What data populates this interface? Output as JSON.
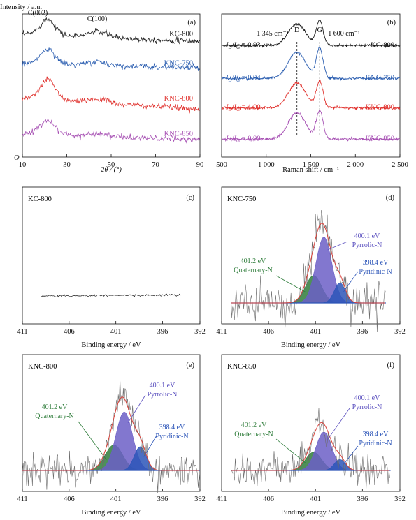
{
  "figure": {
    "y_axis_title": "Intensity / a.u.",
    "origin_label": "O"
  },
  "colors": {
    "KC-800": "#1a1a1a",
    "KNC-750": "#2a5db0",
    "KNC-800": "#e0302c",
    "KNC-850": "#a64fb3",
    "raw": "#6b6b6b",
    "envelope": "#d9423b",
    "pyrrolic": "#6c5fc7",
    "pyridinic": "#2c55b8",
    "quaternary": "#2f7d3b",
    "quaternary_text": "#2f7d3b",
    "pyrrolic_text": "#5a4fbf",
    "pyridinic_text": "#2c55b8"
  },
  "chart_data": [
    {
      "id": "a",
      "type": "line",
      "panel_label": "(a)",
      "xlabel": "2θ / (°)",
      "xlim": [
        10,
        90
      ],
      "xticks": [
        10,
        30,
        50,
        70,
        90
      ],
      "annotations": [
        "C(002)",
        "C(100)"
      ],
      "series": [
        {
          "name": "KC-800",
          "baseline": 4.0,
          "peak002": 0.55,
          "peak100": 0.2,
          "slope": -0.25
        },
        {
          "name": "KNC-750",
          "baseline": 3.0,
          "peak002": 0.5,
          "peak100": 0.12,
          "slope": -0.15
        },
        {
          "name": "KNC-800",
          "baseline": 1.8,
          "peak002": 0.7,
          "peak100": 0.15,
          "slope": -0.35
        },
        {
          "name": "KNC-850",
          "baseline": 0.6,
          "peak002": 0.5,
          "peak100": 0.1,
          "slope": -0.2
        }
      ]
    },
    {
      "id": "b",
      "type": "line",
      "panel_label": "(b)",
      "xlabel": "Raman shift / cm⁻¹",
      "xlim": [
        500,
        2500
      ],
      "xticks": [
        500,
        1000,
        1500,
        2000,
        2500
      ],
      "xtick_labels": [
        "500",
        "1 000",
        "1 500",
        "2 000",
        "2 500"
      ],
      "D_band": 1345,
      "G_band": 1600,
      "D_label": "D",
      "G_label": "G",
      "D_position_label": "1 345 cm⁻¹",
      "G_position_label": "1 600 cm⁻¹",
      "series": [
        {
          "name": "KC-800",
          "ratio_label": "I_D/I_G = 0.93",
          "ratio": 0.93,
          "baseline": 3.1,
          "height": 0.75
        },
        {
          "name": "KNC-750",
          "ratio_label": "I_D/I_G = 0.94",
          "ratio": 0.94,
          "baseline": 2.1,
          "height": 0.9
        },
        {
          "name": "KNC-800",
          "ratio_label": "I_D/I_G = 1.00",
          "ratio": 1.0,
          "baseline": 1.2,
          "height": 0.8
        },
        {
          "name": "KNC-850",
          "ratio_label": "I_D/I_G = 0.99",
          "ratio": 0.99,
          "baseline": 0.25,
          "height": 0.85
        }
      ]
    },
    {
      "id": "c",
      "type": "line",
      "panel_label": "(c)",
      "sample": "KC-800",
      "xlabel": "Binding energy / eV",
      "xlim": [
        411,
        392
      ],
      "xticks": [
        411,
        406,
        401,
        396,
        392
      ],
      "fitted": false,
      "data_range": [
        409,
        394
      ],
      "level": 0.1
    },
    {
      "id": "d",
      "type": "area",
      "panel_label": "(d)",
      "sample": "KNC-750",
      "xlabel": "Binding energy / eV",
      "xlim": [
        411,
        392
      ],
      "xticks": [
        411,
        406,
        401,
        396,
        392
      ],
      "data_range": [
        410,
        393.5
      ],
      "noise": 0.1,
      "components": [
        {
          "name": "Pyrrolic-N",
          "energy": 400.1,
          "energy_label": "400.1 eV",
          "amplitude": 0.72,
          "fwhm": 2.0
        },
        {
          "name": "Quaternary-N",
          "energy": 401.2,
          "energy_label": "401.2 eV",
          "amplitude": 0.3,
          "fwhm": 2.0
        },
        {
          "name": "Pyridinic-N",
          "energy": 398.4,
          "energy_label": "398.4 eV",
          "amplitude": 0.22,
          "fwhm": 1.4
        }
      ]
    },
    {
      "id": "e",
      "type": "area",
      "panel_label": "(e)",
      "sample": "KNC-800",
      "xlabel": "Binding energy / eV",
      "xlim": [
        411,
        392
      ],
      "xticks": [
        411,
        406,
        401,
        396,
        392
      ],
      "data_range": [
        411,
        392
      ],
      "noise": 0.09,
      "components": [
        {
          "name": "Pyrrolic-N",
          "energy": 400.1,
          "energy_label": "400.1 eV",
          "amplitude": 0.64,
          "fwhm": 2.1
        },
        {
          "name": "Quaternary-N",
          "energy": 401.2,
          "energy_label": "401.2 eV",
          "amplitude": 0.28,
          "fwhm": 2.2
        },
        {
          "name": "Pyridinic-N",
          "energy": 398.4,
          "energy_label": "398.4 eV",
          "amplitude": 0.26,
          "fwhm": 1.5
        }
      ]
    },
    {
      "id": "f",
      "type": "area",
      "panel_label": "(f)",
      "sample": "KNC-850",
      "xlabel": "Binding energy / eV",
      "xlim": [
        411,
        392
      ],
      "xticks": [
        411,
        406,
        401,
        396,
        392
      ],
      "data_range": [
        410,
        393
      ],
      "noise": 0.09,
      "components": [
        {
          "name": "Pyrrolic-N",
          "energy": 400.1,
          "energy_label": "400.1 eV",
          "amplitude": 0.42,
          "fwhm": 2.0
        },
        {
          "name": "Quaternary-N",
          "energy": 401.2,
          "energy_label": "401.2 eV",
          "amplitude": 0.2,
          "fwhm": 2.0
        },
        {
          "name": "Pyridinic-N",
          "energy": 398.4,
          "energy_label": "398.4 eV",
          "amplitude": 0.12,
          "fwhm": 1.4
        }
      ]
    }
  ]
}
